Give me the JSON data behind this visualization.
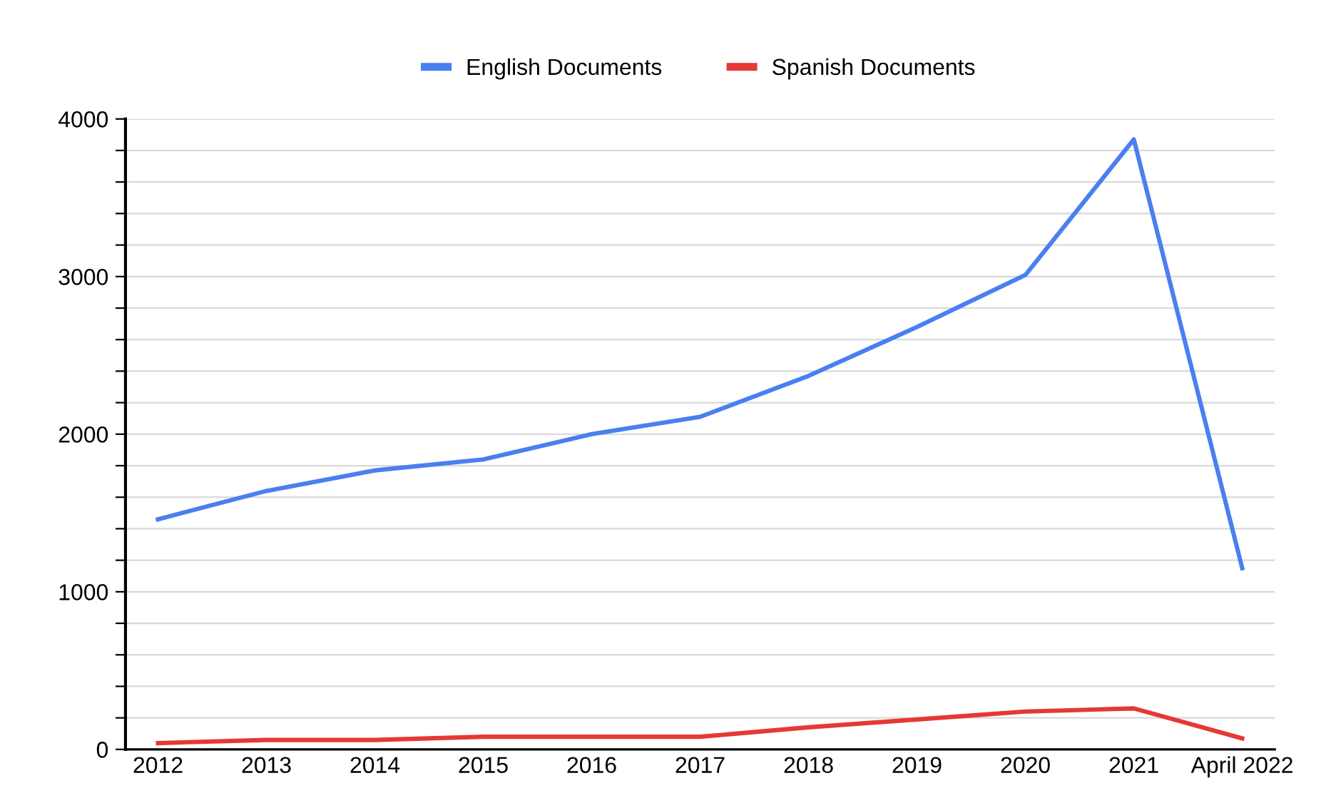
{
  "chart_data": {
    "type": "line",
    "categories": [
      "2012",
      "2013",
      "2014",
      "2015",
      "2016",
      "2017",
      "2018",
      "2019",
      "2020",
      "2021",
      "April 2022"
    ],
    "series": [
      {
        "name": "English Documents",
        "color": "#4a7ff0",
        "values": [
          1460,
          1640,
          1770,
          1840,
          2000,
          2110,
          2370,
          2680,
          3010,
          3870,
          1150
        ]
      },
      {
        "name": "Spanish Documents",
        "color": "#e53935",
        "values": [
          40,
          60,
          60,
          80,
          80,
          80,
          140,
          190,
          240,
          260,
          70
        ]
      }
    ],
    "ylim": [
      0,
      4000
    ],
    "yticks": [
      0,
      {
        "value": 200,
        "label": null
      },
      {
        "value": 400,
        "label": null
      },
      {
        "value": 600,
        "label": null
      },
      {
        "value": 800,
        "label": null
      },
      1000,
      {
        "value": 1200,
        "label": null
      },
      {
        "value": 1400,
        "label": null
      },
      {
        "value": 1600,
        "label": null
      },
      {
        "value": 1800,
        "label": null
      },
      2000,
      {
        "value": 2200,
        "label": null
      },
      {
        "value": 2400,
        "label": null
      },
      {
        "value": 2600,
        "label": null
      },
      {
        "value": 2800,
        "label": null
      },
      3000,
      {
        "value": 3200,
        "label": null
      },
      {
        "value": 3400,
        "label": null
      },
      {
        "value": 3600,
        "label": null
      },
      {
        "value": 3800,
        "label": null
      },
      4000
    ],
    "grid": "y",
    "legend": "top",
    "marker": "none",
    "line_style": "solid"
  }
}
